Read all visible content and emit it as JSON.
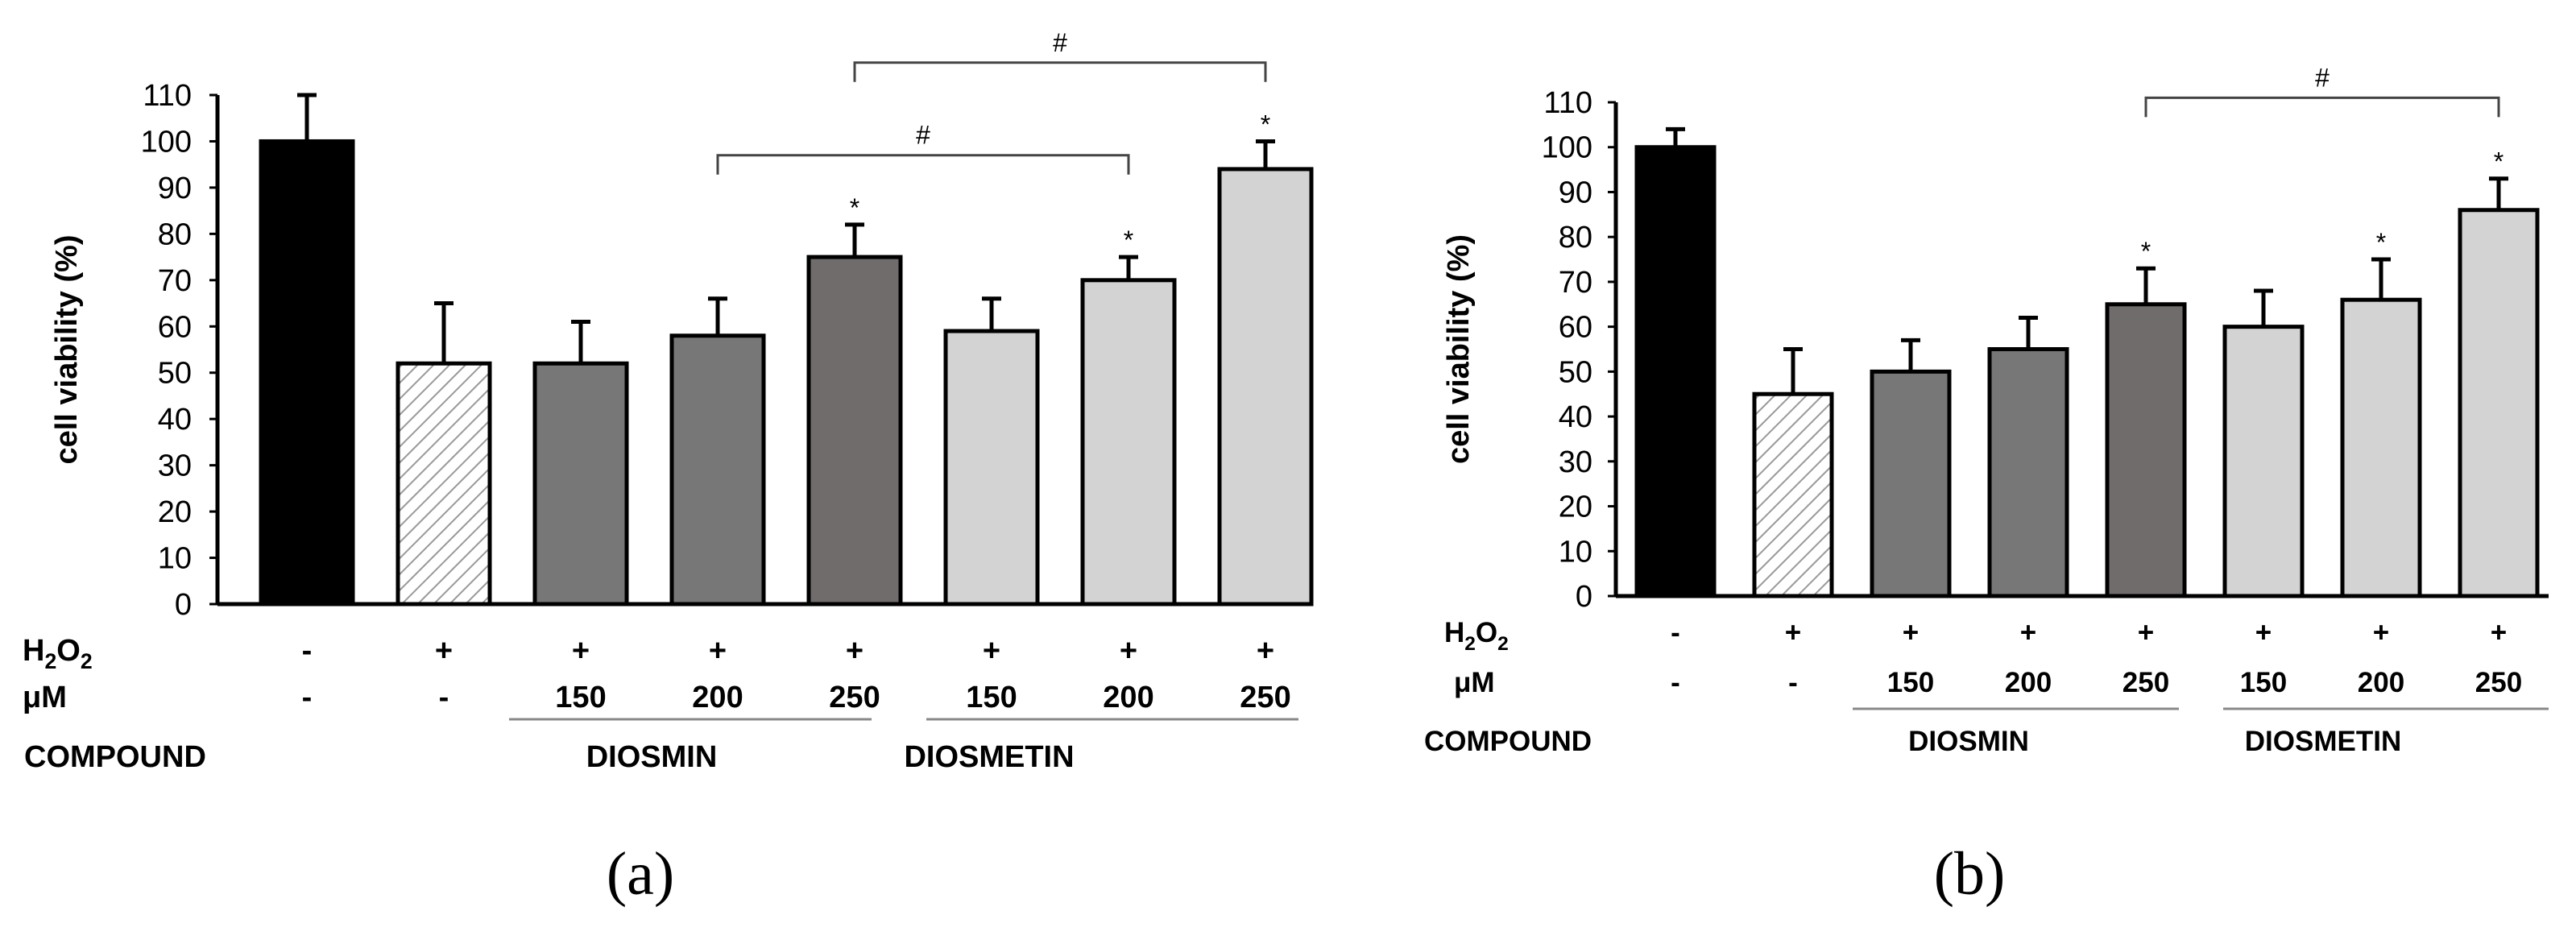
{
  "chart_data": [
    {
      "panel": "a",
      "type": "bar",
      "panel_label": "(a)",
      "ylabel": "cell viability (%)",
      "ylim": [
        0,
        110
      ],
      "yticks": [
        0,
        10,
        20,
        30,
        40,
        50,
        60,
        70,
        80,
        90,
        100,
        110
      ],
      "row_labels": {
        "h2o2_main": "H",
        "h2o2_sub1": "2",
        "h2o2_mid": "O",
        "h2o2_sub2": "2",
        "um": "μM",
        "compound": "COMPOUND"
      },
      "h2o2": [
        "-",
        "+",
        "+",
        "+",
        "+",
        "+",
        "+",
        "+"
      ],
      "um": [
        "-",
        "-",
        "150",
        "200",
        "250",
        "150",
        "200",
        "250"
      ],
      "compounds": [
        {
          "name": "DIOSMIN",
          "from": 2,
          "to": 4
        },
        {
          "name": "DIOSMETIN",
          "from": 5,
          "to": 7
        }
      ],
      "values": [
        100,
        52,
        52,
        58,
        75,
        59,
        70,
        94
      ],
      "errors": [
        10,
        13,
        9,
        8,
        7,
        7,
        5,
        6
      ],
      "fills": [
        "#000000",
        "hatch",
        "#777777",
        "#777777",
        "#706c6b",
        "#d3d3d3",
        "#d3d3d3",
        "#d3d3d3"
      ],
      "significance": [
        "",
        "",
        "",
        "",
        "*",
        "",
        "*",
        "*"
      ],
      "brackets": [
        {
          "from": 3,
          "to": 6,
          "label": "#",
          "y": 97
        },
        {
          "from": 4,
          "to": 7,
          "label": "#",
          "y": 117
        }
      ]
    },
    {
      "panel": "b",
      "type": "bar",
      "panel_label": "(b)",
      "ylabel": "cell viability (%)",
      "ylim": [
        0,
        110
      ],
      "yticks": [
        0,
        10,
        20,
        30,
        40,
        50,
        60,
        70,
        80,
        90,
        100,
        110
      ],
      "row_labels": {
        "h2o2_main": "H",
        "h2o2_sub1": "2",
        "h2o2_mid": "O",
        "h2o2_sub2": "2",
        "um": "μM",
        "compound": "COMPOUND"
      },
      "h2o2": [
        "-",
        "+",
        "+",
        "+",
        "+",
        "+",
        "+",
        "+"
      ],
      "um": [
        "-",
        "-",
        "150",
        "200",
        "250",
        "150",
        "200",
        "250"
      ],
      "compounds": [
        {
          "name": "DIOSMIN",
          "from": 2,
          "to": 4
        },
        {
          "name": "DIOSMETIN",
          "from": 5,
          "to": 7
        }
      ],
      "values": [
        100,
        45,
        50,
        55,
        65,
        60,
        66,
        86
      ],
      "errors": [
        4,
        10,
        7,
        7,
        8,
        8,
        9,
        7
      ],
      "fills": [
        "#000000",
        "hatch",
        "#777777",
        "#777777",
        "#706c6b",
        "#d3d3d3",
        "#d3d3d3",
        "#d3d3d3"
      ],
      "significance": [
        "",
        "",
        "",
        "",
        "*",
        "",
        "*",
        "*"
      ],
      "brackets": [
        {
          "from": 4,
          "to": 7,
          "label": "#",
          "y": 111
        }
      ]
    }
  ]
}
